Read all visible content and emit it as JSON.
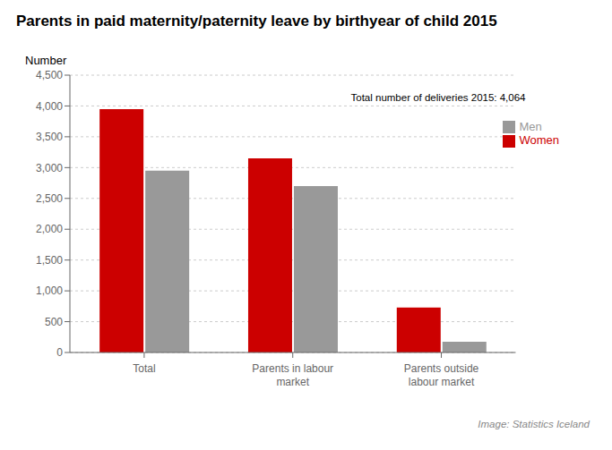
{
  "chart_data": {
    "type": "bar",
    "title": "Parents in paid maternity/paternity leave by birthyear of child 2015",
    "ylabel": "Number",
    "categories": [
      "Total",
      "Parents in labour\nmarket",
      "Parents outside\nlabour market"
    ],
    "series": [
      {
        "name": "Women",
        "color": "#cc0000",
        "values": [
          3950,
          3150,
          730
        ]
      },
      {
        "name": "Men",
        "color": "#999999",
        "values": [
          2950,
          2700,
          175
        ]
      }
    ],
    "ylim": [
      0,
      4500
    ],
    "yticks": [
      0,
      500,
      {
        "value": 1000,
        "label": "1,000"
      },
      {
        "value": 1500,
        "label": "1,500"
      },
      {
        "value": 2000,
        "label": "2,000"
      },
      {
        "value": 2500,
        "label": "2,500"
      },
      {
        "value": 3000,
        "label": "3,000"
      },
      {
        "value": 3500,
        "label": "3,500"
      },
      {
        "value": 4000,
        "label": "4,000"
      },
      {
        "value": 4500,
        "label": "4,500"
      }
    ],
    "annotation": "Total number of deliveries 2015: 4,064",
    "footer": "Image: Statistics Iceland",
    "grid": true,
    "legend": "upper right"
  }
}
